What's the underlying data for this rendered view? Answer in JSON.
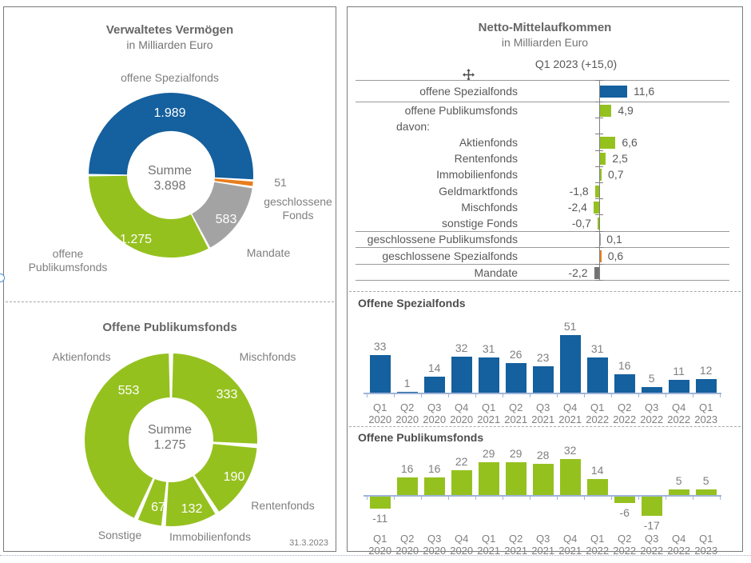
{
  "colors": {
    "blue": "#15609e",
    "green": "#95c11f",
    "orange": "#e87d1e",
    "gray": "#a3a3a3",
    "darkgray": "#737373",
    "axis": "#9fb4d8",
    "line": "#9a9a9a",
    "text_dark": "#595959",
    "text_gray": "#7f7f7f"
  },
  "left_panel": {
    "date": "31.3.2023",
    "assets_chart": {
      "labels": {
        "spezialfonds": "offene Spezialfonds",
        "geschlossene1": "geschlossene",
        "geschlossene2": "Fonds",
        "mandate": "Mandate",
        "publikums1": "offene",
        "publikums2": "Publikumsfonds"
      }
    }
  },
  "chart_data": [
    {
      "type": "pie",
      "title": "Verwaltetes Vermögen",
      "subtitle": "in Milliarden Euro",
      "center_label": "Summe",
      "center_value": "3.898",
      "labels": [
        "offene Spezialfonds",
        "geschlossene Fonds",
        "Mandate",
        "offene Publikumsfonds"
      ],
      "values": [
        1989,
        51,
        583,
        1275
      ],
      "value_texts": [
        "1.989",
        "51",
        "583",
        "1.275"
      ],
      "colors": [
        "#15609e",
        "#e87d1e",
        "#a3a3a3",
        "#95c11f"
      ],
      "start_angle": 270
    },
    {
      "type": "pie",
      "title": "Offene Publikumsfonds",
      "center_label": "Summe",
      "center_value": "1.275",
      "labels": [
        "Mischfonds",
        "Rentenfonds",
        "Immobilienfonds",
        "Sonstige",
        "Aktienfonds"
      ],
      "values": [
        333,
        190,
        132,
        67,
        553
      ],
      "value_texts": [
        "333",
        "190",
        "132",
        "67",
        "553"
      ],
      "color": "#95c11f",
      "start_angle": 0
    },
    {
      "type": "bar",
      "orientation": "horizontal",
      "title": "Netto-Mittelaufkommen",
      "subtitle": "in Milliarden Euro",
      "period": "Q1 2023 (+15,0)",
      "rows": [
        {
          "label": "offene Spezialfonds",
          "value": 11.6,
          "text": "11,6",
          "color": "blue"
        },
        {
          "label": "offene Publikumsfonds",
          "value": 4.9,
          "text": "4,9",
          "color": "green"
        },
        {
          "label": "davon:",
          "value": null,
          "text": "",
          "color": null,
          "indent": true
        },
        {
          "label": "Aktienfonds",
          "value": 6.6,
          "text": "6,6",
          "color": "green"
        },
        {
          "label": "Rentenfonds",
          "value": 2.5,
          "text": "2,5",
          "color": "green"
        },
        {
          "label": "Immobilienfonds",
          "value": 0.7,
          "text": "0,7",
          "color": "green"
        },
        {
          "label": "Geldmarktfonds",
          "value": -1.8,
          "text": "-1,8",
          "color": "green"
        },
        {
          "label": "Mischfonds",
          "value": -2.4,
          "text": "-2,4",
          "color": "green"
        },
        {
          "label": "sonstige Fonds",
          "value": -0.7,
          "text": "-0,7",
          "color": "green"
        },
        {
          "label": "geschlossene Publikumsfonds",
          "value": 0.1,
          "text": "0,1",
          "color": "gray"
        },
        {
          "label": "geschlossene Spezialfonds",
          "value": 0.6,
          "text": "0,6",
          "color": "orange"
        },
        {
          "label": "Mandate",
          "value": -2.2,
          "text": "-2,2",
          "color": "darkgray"
        }
      ]
    },
    {
      "type": "bar",
      "title": "Offene Spezialfonds",
      "categories": [
        "Q1 2020",
        "Q2 2020",
        "Q3 2020",
        "Q4 2020",
        "Q1 2021",
        "Q2 2021",
        "Q3 2021",
        "Q4 2021",
        "Q1 2022",
        "Q2 2022",
        "Q3 2022",
        "Q4 2022",
        "Q1 2023"
      ],
      "values": [
        33,
        1,
        14,
        32,
        31,
        26,
        23,
        51,
        31,
        16,
        5,
        11,
        12
      ]
    },
    {
      "type": "bar",
      "title": "Offene Publikumsfonds",
      "categories": [
        "Q1 2020",
        "Q2 2020",
        "Q3 2020",
        "Q4 2020",
        "Q1 2021",
        "Q2 2021",
        "Q3 2021",
        "Q4 2021",
        "Q1 2022",
        "Q2 2022",
        "Q3 2022",
        "Q4 2022",
        "Q1 2023"
      ],
      "values": [
        -11,
        16,
        16,
        22,
        29,
        29,
        28,
        32,
        14,
        -6,
        -17,
        5,
        5
      ]
    }
  ]
}
